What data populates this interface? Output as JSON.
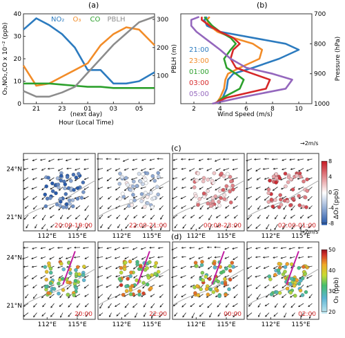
{
  "panels": {
    "a": {
      "label": "(a)"
    },
    "b": {
      "label": "(b)"
    },
    "c": {
      "label": "(c)"
    },
    "d": {
      "label": "(d)"
    }
  },
  "chart_data": [
    {
      "id": "a",
      "type": "line",
      "xlabel": "Hour (Local Time)",
      "x_note": "(next day)",
      "ylabel_left": "O₃,NO₂,CO x 10⁻² (ppb)",
      "ylabel_right": "PBLH (m)",
      "xlim": [
        20,
        30.2
      ],
      "ylim_left": [
        0,
        40
      ],
      "ylim_right": [
        0,
        320
      ],
      "x_ticks": [
        21,
        23,
        25,
        27,
        29
      ],
      "x_tick_labels": [
        "21",
        "23",
        "01",
        "03",
        "05"
      ],
      "y_ticks_left": [
        0,
        10,
        20,
        30,
        40
      ],
      "y_ticks_right": [
        100,
        200,
        300
      ],
      "legend": [
        {
          "name": "NO₂",
          "color": "#2c7bbf"
        },
        {
          "name": "O₃",
          "color": "#f28c28"
        },
        {
          "name": "CO",
          "color": "#2ca02c"
        },
        {
          "name": "PBLH",
          "color": "#8c8c8c"
        }
      ],
      "series": [
        {
          "name": "NO₂",
          "color": "#2c7bbf",
          "axis": "left",
          "x": [
            20,
            21,
            22,
            23,
            24,
            25,
            26,
            27,
            28,
            29,
            30.2
          ],
          "values": [
            33,
            38,
            35,
            31,
            25,
            15,
            15,
            9,
            9,
            10,
            14
          ]
        },
        {
          "name": "O₃",
          "color": "#f28c28",
          "axis": "left",
          "x": [
            20,
            21,
            22,
            23,
            24,
            25,
            26,
            27,
            28,
            29,
            30.2
          ],
          "values": [
            17,
            8,
            9,
            12,
            15,
            18,
            26,
            31,
            34,
            33,
            26
          ]
        },
        {
          "name": "CO",
          "color": "#2ca02c",
          "axis": "left",
          "x": [
            20,
            21,
            22,
            23,
            24,
            25,
            26,
            27,
            28,
            29,
            30.2
          ],
          "values": [
            9,
            9,
            9,
            8.5,
            8,
            7.5,
            7.5,
            7,
            7,
            7,
            7
          ]
        },
        {
          "name": "PBLH",
          "color": "#8c8c8c",
          "axis": "right",
          "x": [
            20,
            21,
            22,
            23,
            24,
            25,
            26,
            27,
            28,
            29,
            30.2
          ],
          "values": [
            45,
            25,
            25,
            40,
            60,
            110,
            160,
            210,
            250,
            290,
            310
          ]
        }
      ]
    },
    {
      "id": "b",
      "type": "line",
      "xlabel": "Wind Speed (m/s)",
      "ylabel": "Pressure (hPa)",
      "xlim": [
        1,
        11
      ],
      "ylim": [
        1000,
        700
      ],
      "x_ticks": [
        2,
        4,
        6,
        8,
        10
      ],
      "y_ticks": [
        700,
        800,
        900,
        1000
      ],
      "legend": [
        {
          "name": "21:00",
          "color": "#2c7bbf"
        },
        {
          "name": "23:00",
          "color": "#f28c28"
        },
        {
          "name": "01:00",
          "color": "#2ca02c"
        },
        {
          "name": "03:00",
          "color": "#d62728"
        },
        {
          "name": "05:00",
          "color": "#9467bd"
        }
      ],
      "series": [
        {
          "name": "21:00",
          "color": "#2c7bbf",
          "pressure": [
            1000,
            980,
            950,
            920,
            900,
            880,
            850,
            820,
            800,
            780,
            760,
            740,
            720,
            710
          ],
          "speed": [
            3.8,
            4.2,
            4.5,
            4.6,
            5.0,
            6.5,
            8.5,
            10.0,
            9.0,
            6.5,
            4.0,
            3.0,
            2.8,
            3.0
          ]
        },
        {
          "name": "23:00",
          "color": "#f28c28",
          "pressure": [
            1000,
            980,
            950,
            920,
            900,
            880,
            850,
            820,
            800,
            780,
            760,
            740,
            720,
            710
          ],
          "speed": [
            3.7,
            4.0,
            4.3,
            4.4,
            4.6,
            5.5,
            7.0,
            7.2,
            6.5,
            5.0,
            3.8,
            3.2,
            3.0,
            3.2
          ]
        },
        {
          "name": "01:00",
          "color": "#2ca02c",
          "pressure": [
            1000,
            980,
            950,
            920,
            900,
            880,
            850,
            820,
            800,
            780,
            760,
            740,
            720,
            710
          ],
          "speed": [
            3.6,
            4.2,
            5.5,
            5.8,
            5.2,
            4.5,
            4.3,
            4.8,
            5.2,
            4.8,
            4.0,
            3.4,
            3.0,
            2.8
          ]
        },
        {
          "name": "03:00",
          "color": "#d62728",
          "pressure": [
            1000,
            980,
            950,
            920,
            900,
            880,
            850,
            820,
            800,
            780,
            760,
            740,
            720,
            710
          ],
          "speed": [
            3.5,
            4.5,
            7.5,
            7.8,
            6.5,
            5.2,
            4.8,
            5.0,
            5.5,
            5.0,
            4.0,
            3.2,
            2.6,
            2.6
          ]
        },
        {
          "name": "05:00",
          "color": "#9467bd",
          "pressure": [
            1000,
            980,
            950,
            920,
            900,
            880,
            850,
            820,
            800,
            780,
            760,
            740,
            720,
            710
          ],
          "speed": [
            3.4,
            5.5,
            9.0,
            9.5,
            8.0,
            6.0,
            4.8,
            4.0,
            3.4,
            2.8,
            2.2,
            1.8,
            1.8,
            2.4
          ]
        }
      ]
    },
    {
      "id": "c",
      "type": "scatter",
      "colorbar_label": "ΔO₃ (ppb)",
      "colorbar_ticks": [
        8,
        4,
        0,
        -4,
        -8
      ],
      "vector_scale": "→2m/s",
      "map_titles": [
        "20:00-19:00",
        "22:00-21:00",
        "00:00-23:00",
        "02:00-01:00"
      ],
      "lat_ticks": [
        "24°N",
        "21°N"
      ],
      "lon_ticks": [
        "112°E",
        "115°E"
      ]
    },
    {
      "id": "d",
      "type": "scatter",
      "colorbar_label": "O₃ (ppb)",
      "colorbar_ticks": [
        50,
        40,
        30,
        20
      ],
      "vector_scale": "→2m/s",
      "map_titles": [
        "20:00",
        "22:00",
        "00:00",
        "02:00"
      ],
      "lat_ticks": [
        "24°N",
        "21°N"
      ],
      "lon_ticks": [
        "112°E",
        "115°E"
      ]
    }
  ]
}
